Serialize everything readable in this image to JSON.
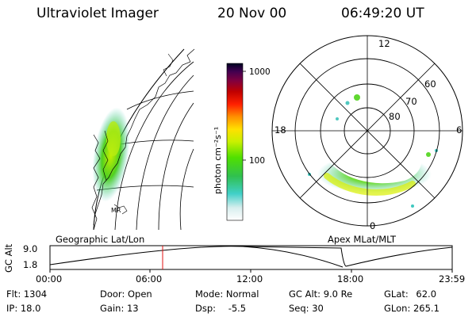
{
  "header": {
    "title": "Ultraviolet Imager",
    "date": "20 Nov 00",
    "time": "06:49:20 UT"
  },
  "colorbar": {
    "unit_label": "photon cm⁻²s⁻¹",
    "ticks": [
      "1000",
      "100"
    ]
  },
  "panels": {
    "left_label": "Geographic Lat/Lon",
    "right_label": "Apex MLat/MLT"
  },
  "polar": {
    "mlt_labels": [
      "12",
      "18",
      "6",
      "0"
    ],
    "mlat_labels": [
      "60",
      "70",
      "80"
    ]
  },
  "geo": {
    "map_label": "MR"
  },
  "altitude_plot": {
    "ylabel": "GC Alt",
    "yticks": [
      "9.0",
      "1.8"
    ],
    "xticks": [
      "00:00",
      "06:00",
      "12:00",
      "18:00",
      "23:59"
    ],
    "current_time_marker": "06:49"
  },
  "info": {
    "col1": [
      {
        "label": "Flt:",
        "value": "1304"
      },
      {
        "label": "IP:",
        "value": "18.0"
      }
    ],
    "col2": [
      {
        "label": "Door:",
        "value": "Open"
      },
      {
        "label": "Gain:",
        "value": "13"
      }
    ],
    "col3": [
      {
        "label": "Mode:",
        "value": "Normal"
      },
      {
        "label": "Dsp:",
        "value": "-5.5"
      }
    ],
    "col4": [
      {
        "label": "GC Alt:",
        "value": "9.0 Re"
      },
      {
        "label": "Seq:",
        "value": "30"
      }
    ],
    "col5": [
      {
        "label": "GLat:",
        "value": "62.0"
      },
      {
        "label": "GLon:",
        "value": "265.1"
      }
    ]
  }
}
